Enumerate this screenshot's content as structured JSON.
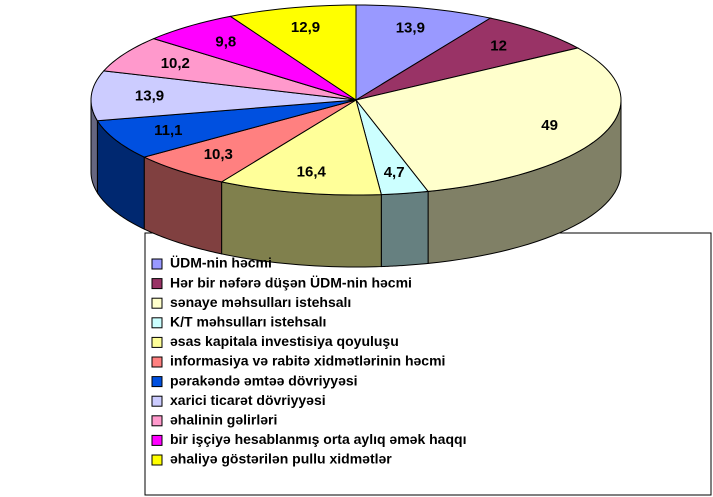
{
  "chart_data": {
    "type": "pie",
    "categories": [
      "ÜDM-nin həcmi",
      "Hər bir nəfərə düşən ÜDM-nin həcmi",
      "sənaye məhsulları istehsalı",
      "K/T məhsulları istehsalı",
      "əsas kapitala investisiya qoyuluşu",
      "informasiya və rabitə xidmətlərinin həcmi",
      "pərakəndə əmtəə dövriyyəsi",
      "xarici ticarət dövriyyəsi",
      "əhalinin gəlirləri",
      "bir işçiyə hesablanmış orta aylıq əmək haqqı",
      "əhaliyə göstərilən pullu xidmətlər"
    ],
    "values": [
      13.9,
      12,
      49,
      4.7,
      16.4,
      10.3,
      11.1,
      13.9,
      10.2,
      9.8,
      12.9
    ],
    "value_labels": [
      "13,9",
      "12",
      "49",
      "4,7",
      "16,4",
      "10,3",
      "11,1",
      "13,9",
      "10,2",
      "9,8",
      "12,9"
    ],
    "colors": [
      "#9999ff",
      "#993366",
      "#ffffcc",
      "#ccffff",
      "#ffff99",
      "#ff8080",
      "#0050e0",
      "#ccccff",
      "#ff99cc",
      "#ff00ff",
      "#ffff00"
    ],
    "legend": "bottom"
  }
}
